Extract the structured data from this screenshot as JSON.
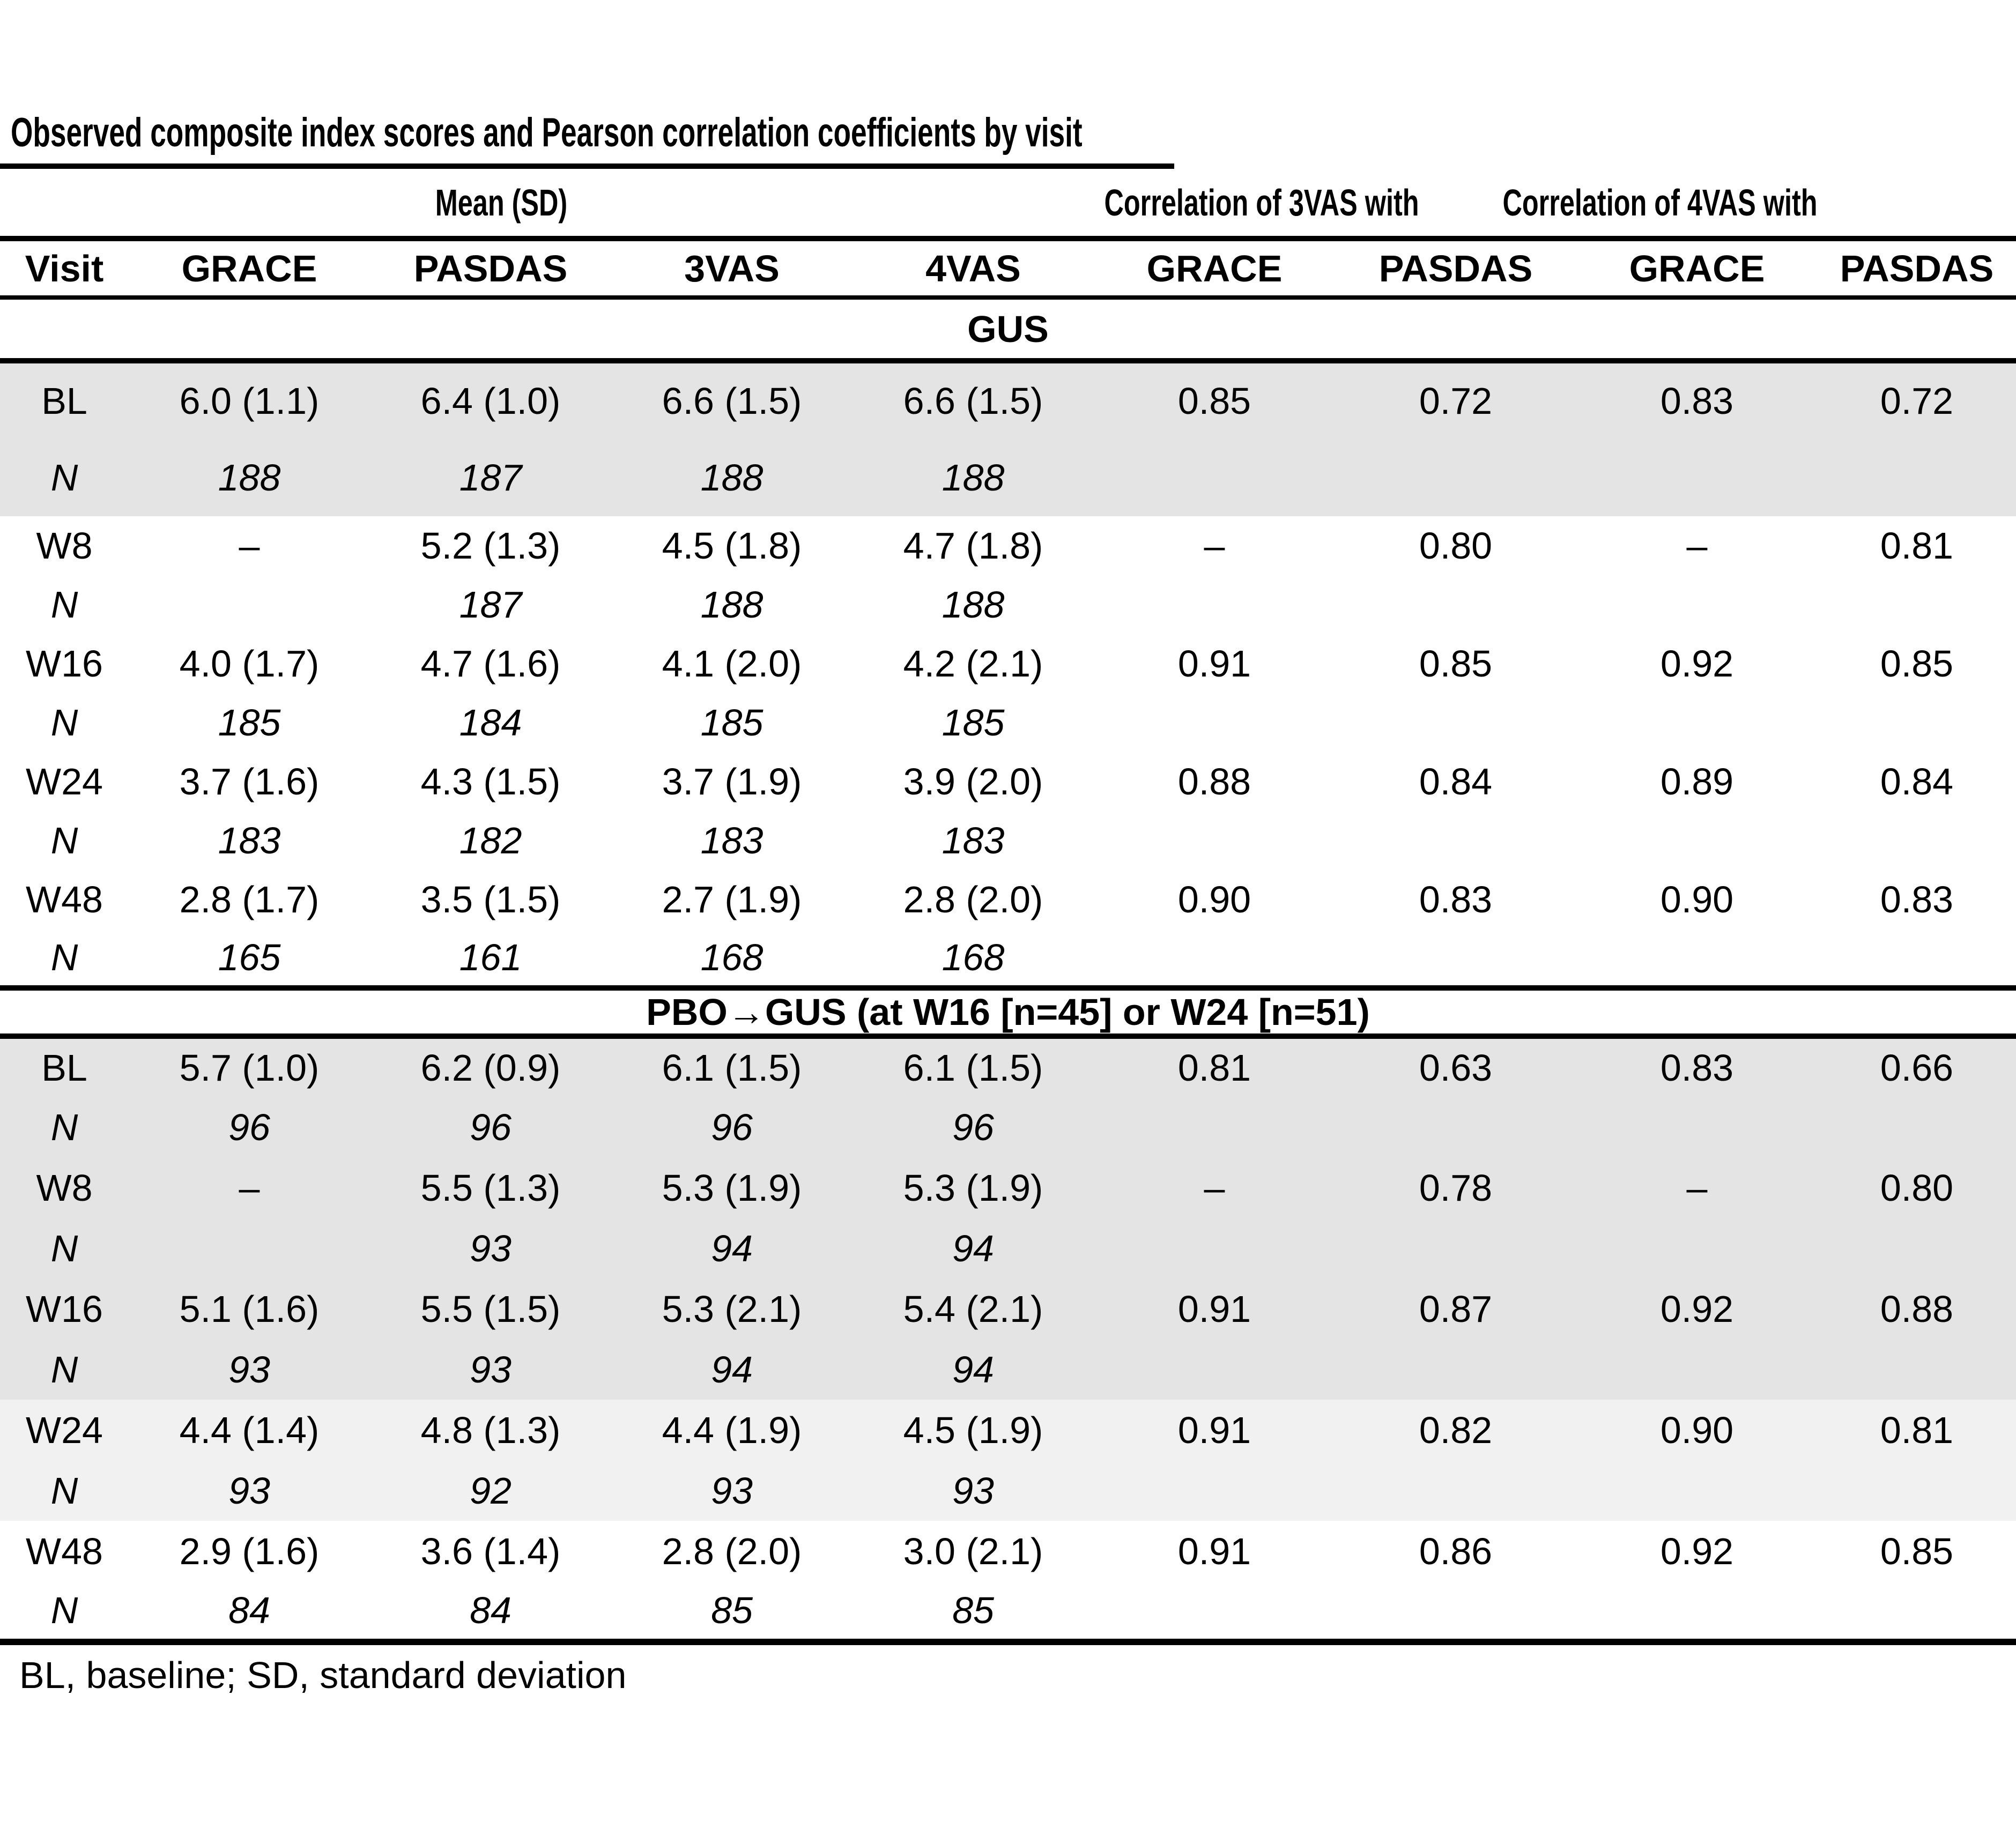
{
  "title": "Observed composite index scores and Pearson correlation coefficients by visit",
  "footnote": "BL, baseline; SD, standard deviation",
  "group_headers": {
    "mean": "Mean (SD)",
    "corr3": "Correlation of 3VAS with",
    "corr4": "Correlation of 4VAS with"
  },
  "columns": [
    "Visit",
    "GRACE",
    "PASDAS",
    "3VAS",
    "4VAS",
    "GRACE",
    "PASDAS",
    "GRACE",
    "PASDAS"
  ],
  "n_label": "N",
  "sections": [
    {
      "label": "GUS",
      "rows": [
        {
          "visit": "BL",
          "shade": "gray",
          "values": [
            "6.0 (1.1)",
            "6.4 (1.0)",
            "6.6 (1.5)",
            "6.6 (1.5)",
            "0.85",
            "0.72",
            "0.83",
            "0.72"
          ],
          "n": [
            "188",
            "187",
            "188",
            "188"
          ]
        },
        {
          "visit": "W8",
          "shade": "white",
          "values": [
            "–",
            "5.2 (1.3)",
            "4.5 (1.8)",
            "4.7 (1.8)",
            "–",
            "0.80",
            "–",
            "0.81"
          ],
          "n": [
            "",
            "187",
            "188",
            "188"
          ]
        },
        {
          "visit": "W16",
          "shade": "white",
          "values": [
            "4.0 (1.7)",
            "4.7 (1.6)",
            "4.1 (2.0)",
            "4.2 (2.1)",
            "0.91",
            "0.85",
            "0.92",
            "0.85"
          ],
          "n": [
            "185",
            "184",
            "185",
            "185"
          ]
        },
        {
          "visit": "W24",
          "shade": "white",
          "values": [
            "3.7 (1.6)",
            "4.3 (1.5)",
            "3.7 (1.9)",
            "3.9 (2.0)",
            "0.88",
            "0.84",
            "0.89",
            "0.84"
          ],
          "n": [
            "183",
            "182",
            "183",
            "183"
          ]
        },
        {
          "visit": "W48",
          "shade": "white",
          "values": [
            "2.8 (1.7)",
            "3.5 (1.5)",
            "2.7 (1.9)",
            "2.8 (2.0)",
            "0.90",
            "0.83",
            "0.90",
            "0.83"
          ],
          "n": [
            "165",
            "161",
            "168",
            "168"
          ]
        }
      ]
    },
    {
      "label": "PBO→GUS (at W16 [n=45] or W24 [n=51)",
      "rows": [
        {
          "visit": "BL",
          "shade": "gray",
          "values": [
            "5.7 (1.0)",
            "6.2 (0.9)",
            "6.1 (1.5)",
            "6.1 (1.5)",
            "0.81",
            "0.63",
            "0.83",
            "0.66"
          ],
          "n": [
            "96",
            "96",
            "96",
            "96"
          ]
        },
        {
          "visit": "W8",
          "shade": "gray",
          "values": [
            "–",
            "5.5 (1.3)",
            "5.3 (1.9)",
            "5.3 (1.9)",
            "–",
            "0.78",
            "–",
            "0.80"
          ],
          "n": [
            "",
            "93",
            "94",
            "94"
          ]
        },
        {
          "visit": "W16",
          "shade": "gray",
          "values": [
            "5.1 (1.6)",
            "5.5 (1.5)",
            "5.3 (2.1)",
            "5.4 (2.1)",
            "0.91",
            "0.87",
            "0.92",
            "0.88"
          ],
          "n": [
            "93",
            "93",
            "94",
            "94"
          ]
        },
        {
          "visit": "W24",
          "shade": "light",
          "values": [
            "4.4 (1.4)",
            "4.8 (1.3)",
            "4.4 (1.9)",
            "4.5 (1.9)",
            "0.91",
            "0.82",
            "0.90",
            "0.81"
          ],
          "n": [
            "93",
            "92",
            "93",
            "93"
          ]
        },
        {
          "visit": "W48",
          "shade": "white",
          "values": [
            "2.9 (1.6)",
            "3.6 (1.4)",
            "2.8 (2.0)",
            "3.0 (2.1)",
            "0.91",
            "0.86",
            "0.92",
            "0.85"
          ],
          "n": [
            "84",
            "84",
            "85",
            "85"
          ]
        }
      ]
    }
  ],
  "colors": {
    "shade_gray": "#e4e4e4",
    "shade_light": "#f1f1f1",
    "text": "#000000"
  }
}
